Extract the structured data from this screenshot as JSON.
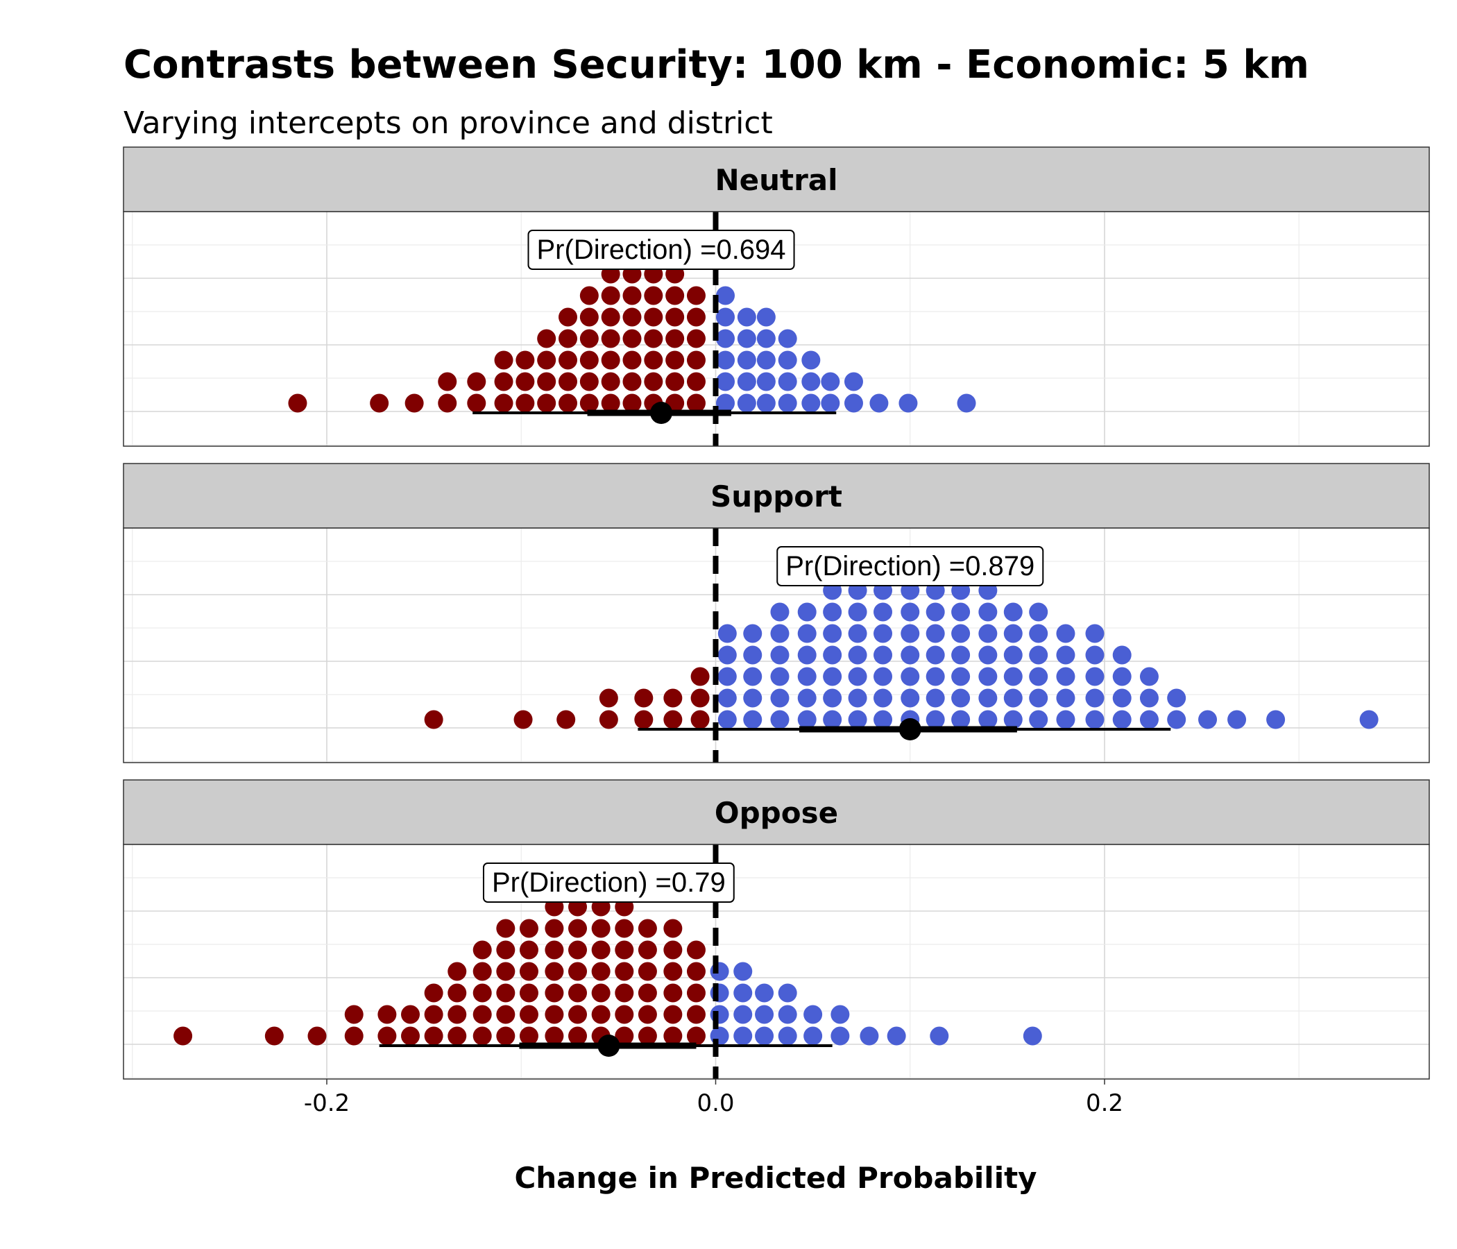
{
  "title": "Contrasts between Security: 100 km - Economic: 5 km",
  "subtitle": "Varying intercepts on province and district",
  "colors": {
    "negative": "#800000",
    "positive": "#4a5fd4",
    "strip": "#cccccc",
    "grid_major": "#d6d6d6",
    "grid_minor": "#ececec",
    "point": "#000000"
  },
  "chart_data": {
    "type": "scatter",
    "subtype": "dotplot-with-pointinterval",
    "facet_by": "response",
    "xlabel": "Change in Predicted Probability",
    "ylabel": "",
    "xlim": [
      -0.3,
      0.37
    ],
    "x_ticks": [
      {
        "value": -0.2,
        "label": "-0.2"
      },
      {
        "value": 0.0,
        "label": "0.0"
      },
      {
        "value": 0.2,
        "label": "0.2"
      }
    ],
    "reference_line": 0,
    "grid": true,
    "panels": [
      {
        "name": "Neutral",
        "annotation": "Pr(Direction) =0.694",
        "annotation_x": -0.028,
        "point_estimate": -0.028,
        "interval_66": [
          -0.066,
          0.008
        ],
        "interval_95": [
          -0.125,
          0.062
        ],
        "dots_x": [
          -0.215,
          -0.173,
          -0.155,
          -0.138,
          -0.123,
          -0.109,
          -0.098,
          -0.087,
          -0.076,
          -0.065,
          -0.054,
          -0.043,
          -0.032,
          -0.021,
          -0.01,
          0.005,
          0.016,
          0.026,
          0.037,
          0.049,
          0.059,
          0.071,
          0.084,
          0.099,
          0.129
        ],
        "dots_count": [
          1,
          1,
          1,
          2,
          2,
          3,
          3,
          4,
          5,
          6,
          7,
          7,
          7,
          7,
          6,
          6,
          5,
          5,
          4,
          3,
          2,
          2,
          1,
          1,
          1
        ]
      },
      {
        "name": "Support",
        "annotation": "Pr(Direction) =0.879",
        "annotation_x": 0.1,
        "point_estimate": 0.1,
        "interval_66": [
          0.043,
          0.155
        ],
        "interval_95": [
          -0.04,
          0.234
        ],
        "dots_x": [
          -0.145,
          -0.099,
          -0.077,
          -0.055,
          -0.037,
          -0.022,
          -0.008,
          0.006,
          0.019,
          0.033,
          0.047,
          0.06,
          0.073,
          0.086,
          0.1,
          0.113,
          0.126,
          0.14,
          0.153,
          0.166,
          0.18,
          0.195,
          0.209,
          0.223,
          0.237,
          0.253,
          0.268,
          0.288,
          0.336
        ],
        "dots_count": [
          1,
          1,
          1,
          2,
          2,
          2,
          3,
          5,
          5,
          6,
          6,
          7,
          7,
          7,
          7,
          7,
          7,
          7,
          6,
          6,
          5,
          5,
          4,
          3,
          2,
          1,
          1,
          1,
          1
        ]
      },
      {
        "name": "Oppose",
        "annotation": "Pr(Direction) =0.79",
        "annotation_x": -0.055,
        "point_estimate": -0.055,
        "interval_66": [
          -0.101,
          -0.01
        ],
        "interval_95": [
          -0.173,
          0.06
        ],
        "dots_x": [
          -0.274,
          -0.227,
          -0.205,
          -0.186,
          -0.169,
          -0.157,
          -0.145,
          -0.133,
          -0.12,
          -0.108,
          -0.096,
          -0.083,
          -0.071,
          -0.059,
          -0.047,
          -0.035,
          -0.022,
          -0.01,
          0.002,
          0.014,
          0.025,
          0.037,
          0.05,
          0.064,
          0.079,
          0.093,
          0.115,
          0.163
        ],
        "dots_count": [
          1,
          1,
          1,
          2,
          2,
          2,
          3,
          4,
          5,
          6,
          6,
          7,
          8,
          8,
          7,
          6,
          6,
          5,
          4,
          4,
          3,
          3,
          2,
          2,
          1,
          1,
          1,
          1
        ]
      }
    ]
  }
}
